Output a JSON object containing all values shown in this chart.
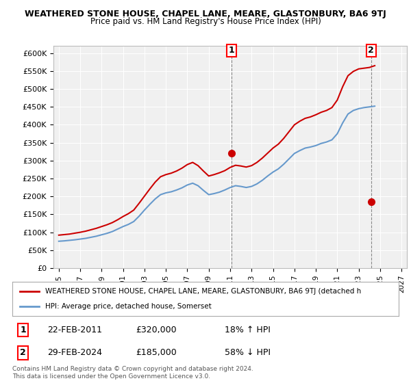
{
  "title": "WEATHERED STONE HOUSE, CHAPEL LANE, MEARE, GLASTONBURY, BA6 9TJ",
  "subtitle": "Price paid vs. HM Land Registry's House Price Index (HPI)",
  "legend_line1": "WEATHERED STONE HOUSE, CHAPEL LANE, MEARE, GLASTONBURY, BA6 9TJ (detached h",
  "legend_line2": "HPI: Average price, detached house, Somerset",
  "footer1": "Contains HM Land Registry data © Crown copyright and database right 2024.",
  "footer2": "This data is licensed under the Open Government Licence v3.0.",
  "annotation1_label": "1",
  "annotation1_date": "22-FEB-2011",
  "annotation1_price": "£320,000",
  "annotation1_hpi": "18% ↑ HPI",
  "annotation2_label": "2",
  "annotation2_date": "29-FEB-2024",
  "annotation2_price": "£185,000",
  "annotation2_hpi": "58% ↓ HPI",
  "sale1_x": 2011.14,
  "sale1_y": 320000,
  "sale2_x": 2024.16,
  "sale2_y": 185000,
  "ylim": [
    0,
    620000
  ],
  "xlim": [
    1994.5,
    2027.5
  ],
  "background_color": "#ffffff",
  "plot_bg_color": "#f0f0f0",
  "grid_color": "#ffffff",
  "red_color": "#cc0000",
  "blue_color": "#6699cc",
  "hpi_years": [
    1995,
    1995.5,
    1996,
    1996.5,
    1997,
    1997.5,
    1998,
    1998.5,
    1999,
    1999.5,
    2000,
    2000.5,
    2001,
    2001.5,
    2002,
    2002.5,
    2003,
    2003.5,
    2004,
    2004.5,
    2005,
    2005.5,
    2006,
    2006.5,
    2007,
    2007.5,
    2008,
    2008.5,
    2009,
    2009.5,
    2010,
    2010.5,
    2011,
    2011.5,
    2012,
    2012.5,
    2013,
    2013.5,
    2014,
    2014.5,
    2015,
    2015.5,
    2016,
    2016.5,
    2017,
    2017.5,
    2018,
    2018.5,
    2019,
    2019.5,
    2020,
    2020.5,
    2021,
    2021.5,
    2022,
    2022.5,
    2023,
    2023.5,
    2024,
    2024.5
  ],
  "hpi_values": [
    75000,
    76000,
    77500,
    79000,
    81000,
    83000,
    86000,
    89000,
    93000,
    97000,
    102000,
    109000,
    116000,
    122000,
    130000,
    145000,
    162000,
    178000,
    193000,
    205000,
    210000,
    213000,
    218000,
    224000,
    232000,
    237000,
    230000,
    217000,
    205000,
    208000,
    212000,
    218000,
    225000,
    230000,
    228000,
    225000,
    228000,
    235000,
    245000,
    257000,
    268000,
    277000,
    290000,
    305000,
    320000,
    328000,
    335000,
    338000,
    342000,
    348000,
    352000,
    358000,
    375000,
    405000,
    430000,
    440000,
    445000,
    448000,
    450000,
    452000
  ],
  "red_years": [
    1995,
    1995.5,
    1996,
    1996.5,
    1997,
    1997.5,
    1998,
    1998.5,
    1999,
    1999.5,
    2000,
    2000.5,
    2001,
    2001.5,
    2002,
    2002.5,
    2003,
    2003.5,
    2004,
    2004.5,
    2005,
    2005.5,
    2006,
    2006.5,
    2007,
    2007.5,
    2008,
    2008.5,
    2009,
    2009.5,
    2010,
    2010.5,
    2011,
    2011.5,
    2012,
    2012.5,
    2013,
    2013.5,
    2014,
    2014.5,
    2015,
    2015.5,
    2016,
    2016.5,
    2017,
    2017.5,
    2018,
    2018.5,
    2019,
    2019.5,
    2020,
    2020.5,
    2021,
    2021.5,
    2022,
    2022.5,
    2023,
    2023.5,
    2024,
    2024.5
  ],
  "red_values": [
    92000,
    93500,
    95000,
    97500,
    100000,
    103000,
    107000,
    111000,
    116000,
    121000,
    127000,
    135000,
    144000,
    152000,
    162000,
    181000,
    201000,
    221000,
    240000,
    255000,
    261000,
    265000,
    271000,
    279000,
    289000,
    295000,
    286000,
    271000,
    257000,
    261000,
    266000,
    272000,
    281000,
    287000,
    285000,
    282000,
    286000,
    295000,
    307000,
    321000,
    335000,
    346000,
    362000,
    381000,
    400000,
    410000,
    418000,
    422000,
    428000,
    435000,
    440000,
    448000,
    469000,
    506000,
    537000,
    549000,
    556000,
    558000,
    560000,
    565000
  ]
}
